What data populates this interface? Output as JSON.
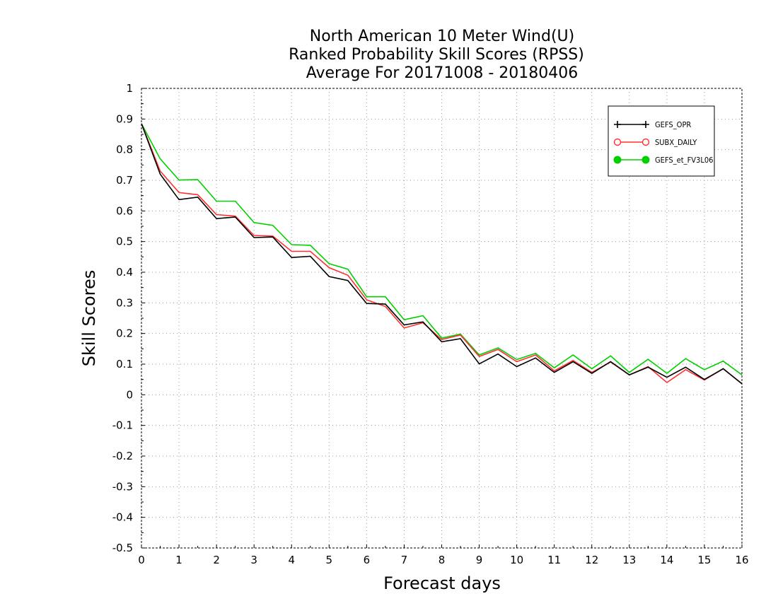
{
  "chart_data": {
    "type": "line",
    "title": "North American 10 Meter Wind(U)",
    "subtitle": [
      "Ranked Probability Skill Scores (RPSS)",
      "Average For 20171008 - 20180406"
    ],
    "xlabel": "Forecast days",
    "ylabel": "Skill Scores",
    "xlim": [
      0,
      16
    ],
    "ylim": [
      -0.5,
      1
    ],
    "x_ticks": [
      "0",
      "1",
      "2",
      "3",
      "4",
      "5",
      "6",
      "7",
      "8",
      "9",
      "10",
      "11",
      "12",
      "13",
      "14",
      "15",
      "16"
    ],
    "y_ticks": [
      "1",
      "0.9",
      "0.8",
      "0.7",
      "0.6",
      "0.5",
      "0.4",
      "0.3",
      "0.2",
      "0.1",
      "0",
      "-0.1",
      "-0.2",
      "-0.3",
      "-0.4",
      "-0.5"
    ],
    "grid": true,
    "legend_position": "top-right",
    "x": [
      0,
      0.5,
      1,
      1.5,
      2,
      2.5,
      3,
      3.5,
      4,
      4.5,
      5,
      5.5,
      6,
      6.5,
      7,
      7.5,
      8,
      8.5,
      9,
      9.5,
      10,
      10.5,
      11,
      11.5,
      12,
      12.5,
      13,
      13.5,
      14,
      14.5,
      15,
      15.5,
      16
    ],
    "series": [
      {
        "name": "GEFS_OPR",
        "color": "#000000",
        "marker": "plus",
        "values": [
          0.885,
          0.72,
          0.637,
          0.645,
          0.575,
          0.58,
          0.513,
          0.515,
          0.448,
          0.452,
          0.386,
          0.373,
          0.298,
          0.296,
          0.228,
          0.238,
          0.173,
          0.183,
          0.101,
          0.133,
          0.092,
          0.12,
          0.073,
          0.108,
          0.07,
          0.108,
          0.065,
          0.09,
          0.057,
          0.09,
          0.05,
          0.085,
          0.036
        ]
      },
      {
        "name": "SUBX_DAILY",
        "color": "#ff3030",
        "marker": "open-circle",
        "values": [
          0.885,
          0.73,
          0.66,
          0.653,
          0.588,
          0.583,
          0.52,
          0.518,
          0.468,
          0.468,
          0.415,
          0.39,
          0.31,
          0.288,
          0.218,
          0.235,
          0.18,
          0.195,
          0.125,
          0.148,
          0.108,
          0.13,
          0.078,
          0.112,
          0.073,
          0.107,
          0.065,
          0.092,
          0.04,
          0.082,
          0.048,
          0.085,
          0.036
        ]
      },
      {
        "name": "GEFS_et_FV3L06",
        "color": "#00d000",
        "marker": "filled-circle",
        "values": [
          0.885,
          0.77,
          0.701,
          0.702,
          0.632,
          0.632,
          0.562,
          0.553,
          0.49,
          0.488,
          0.428,
          0.41,
          0.32,
          0.32,
          0.245,
          0.258,
          0.185,
          0.198,
          0.13,
          0.153,
          0.115,
          0.135,
          0.088,
          0.13,
          0.085,
          0.127,
          0.073,
          0.116,
          0.07,
          0.118,
          0.082,
          0.11,
          0.065
        ]
      }
    ]
  }
}
